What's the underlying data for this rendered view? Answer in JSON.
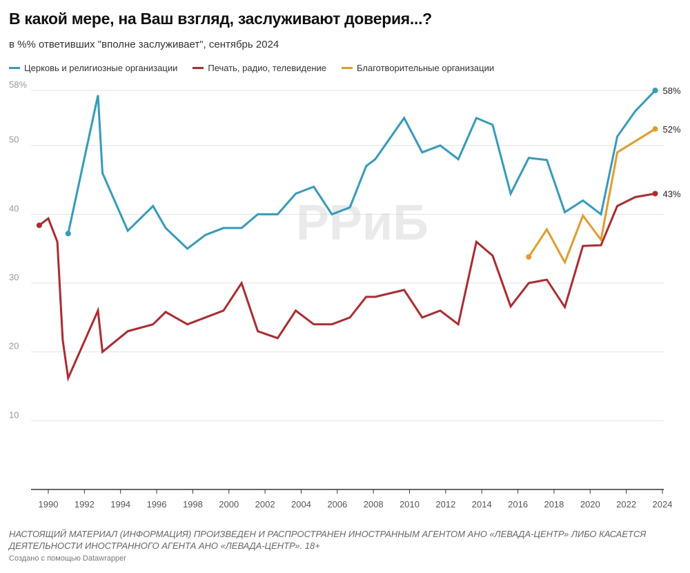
{
  "chart_data": {
    "type": "line",
    "title": "В какой мере, на Ваш взгляд, заслуживают доверия...?",
    "subtitle": "в %% ответивших \"вполне заслуживает\", сентябрь 2024",
    "xlabel": "",
    "ylabel": "",
    "xlim": [
      1989.5,
      2024
    ],
    "ylim": [
      0,
      58
    ],
    "yticks": [
      10,
      20,
      30,
      40,
      50,
      58
    ],
    "ytick_labels": [
      "10",
      "20",
      "30",
      "40",
      "50",
      "58%"
    ],
    "xticks": [
      "1990",
      "1992",
      "1994",
      "1996",
      "1998",
      "2000",
      "2002",
      "2004",
      "2006",
      "2008",
      "2010",
      "2012",
      "2014",
      "2016",
      "2018",
      "2020",
      "2022",
      "2024"
    ],
    "grid": true,
    "legend_position": "top-left",
    "series": [
      {
        "name": "Церковь и религиозные организации",
        "color": "#2e9dc0",
        "end_label": "58%",
        "x": [
          1991.1,
          1992.75,
          1993.0,
          1994.4,
          1995.8,
          1996.5,
          1997.7,
          1998.7,
          1999.7,
          2000.7,
          2001.6,
          2002.7,
          2003.7,
          2004.7,
          2005.7,
          2006.7,
          2007.6,
          2008.1,
          2009.7,
          2010.7,
          2011.7,
          2012.7,
          2013.7,
          2014.6,
          2015.6,
          2016.6,
          2017.6,
          2018.6,
          2019.6,
          2020.6,
          2021.5,
          2022.5,
          2023.6
        ],
        "y": [
          37.2,
          57.3,
          46,
          37.6,
          41.2,
          38,
          35,
          37,
          38,
          38,
          40,
          40,
          43,
          44,
          40,
          41,
          47,
          48,
          54,
          49,
          50,
          48,
          54,
          53,
          43,
          48.2,
          47.9,
          40.3,
          42,
          40,
          51.3,
          55,
          58
        ]
      },
      {
        "name": "Печать, радио, телевидение",
        "color": "#b5272a",
        "end_label": "43%",
        "x": [
          1989.5,
          1990,
          1990.5,
          1990.8,
          1991.1,
          1992.75,
          1993.0,
          1994.4,
          1995.8,
          1996.5,
          1997.7,
          1999.7,
          2000.7,
          2001.6,
          2002.7,
          2003.7,
          2004.7,
          2005.7,
          2006.7,
          2007.6,
          2008.1,
          2009.7,
          2010.7,
          2011.7,
          2012.7,
          2013.7,
          2014.6,
          2015.6,
          2016.6,
          2017.6,
          2018.6,
          2019.6,
          2020.6,
          2021.5,
          2022.5,
          2023.6
        ],
        "y": [
          38.4,
          39.4,
          36,
          21.7,
          16.2,
          26,
          20,
          23,
          24,
          25.8,
          24,
          26,
          30,
          23,
          22,
          26,
          24,
          24,
          25,
          28,
          28,
          29,
          25,
          26,
          24,
          36,
          34,
          26.6,
          30,
          30.5,
          26.5,
          35.4,
          35.5,
          41.2,
          42.5,
          43
        ]
      },
      {
        "name": "Благотворительные организации",
        "color": "#e89b22",
        "end_label": "52%",
        "x": [
          2016.6,
          2017.6,
          2018.6,
          2019.6,
          2020.6,
          2021.5,
          2023.6
        ],
        "y": [
          33.8,
          37.8,
          33,
          39.8,
          36.3,
          49,
          52.4
        ]
      }
    ]
  },
  "watermark": "РРиБ",
  "notice": "НАСТОЯЩИЙ МАТЕРИАЛ (ИНФОРМАЦИЯ) ПРОИЗВЕДЕН И РАСПРОСТРАНЕН ИНОСТРАННЫМ АГЕНТОМ АНО «ЛЕВАДА-ЦЕНТР» ЛИБО КАСАЕТСЯ ДЕЯТЕЛЬНОСТИ ИНОСТРАННОГО АГЕНТА АНО «ЛЕВАДА-ЦЕНТР». 18+",
  "credit": "Создано с помощью Datawrapper"
}
